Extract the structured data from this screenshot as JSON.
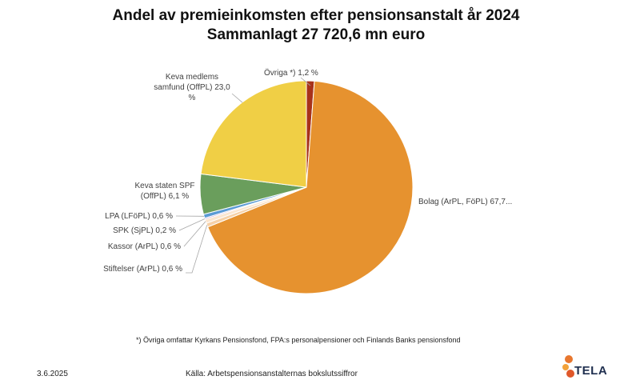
{
  "chart_data": {
    "type": "pie",
    "title": "Andel av premieinkomsten efter pensionsanstalt år 2024",
    "subtitle": "Sammanlagt 27 720,6 mn euro",
    "slices": [
      {
        "label": "Övriga *) 1,2 %",
        "value": 1.2,
        "color": "#a8321a"
      },
      {
        "label": "Bolag (ArPL, FöPL) 67,7...",
        "value": 67.7,
        "color": "#e6922f"
      },
      {
        "label": "Stiftelser (ArPL) 0,6 %",
        "value": 0.6,
        "color": "#f6d1a8"
      },
      {
        "label": "Kassor (ArPL) 0,6 %",
        "value": 0.6,
        "color": "#fbe6d0"
      },
      {
        "label": "SPK (SjPL) 0,2 %",
        "value": 0.2,
        "color": "#c9a5d8"
      },
      {
        "label": "LPA (LFöPL) 0,6 %",
        "value": 0.6,
        "color": "#5b9bd5"
      },
      {
        "label": "Keva staten SPF (OffPL) 6,1 %",
        "value": 6.1,
        "color": "#6a9e5c"
      },
      {
        "label": "Keva medlems samfund (OffPL) 23,0 %",
        "value": 23.0,
        "color": "#f0cf45"
      }
    ]
  },
  "footnote": "*) Övriga omfattar Kyrkans Pensionsfond, FPA:s personalpensioner och Finlands Banks pensionsfond",
  "date": "3.6.2025",
  "source": "Källa: Arbetspensionsanstalternas bokslutssiffror",
  "logo": {
    "text": "TELA",
    "icon": "tela-dots-icon",
    "colors": [
      "#e8772e",
      "#f2a23a",
      "#e0582a"
    ]
  }
}
